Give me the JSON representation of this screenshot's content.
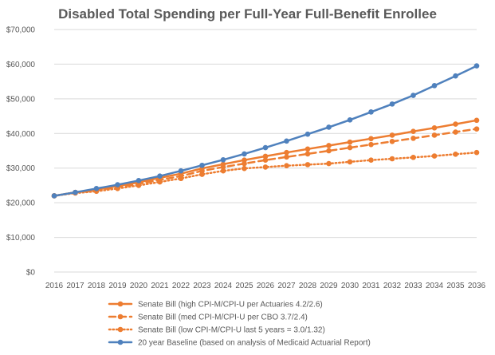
{
  "chart_data": {
    "type": "line",
    "title": "Disabled Total Spending per Full-Year Full-Benefit Enrollee",
    "x": [
      "2016",
      "2017",
      "2018",
      "2019",
      "2020",
      "2021",
      "2022",
      "2023",
      "2024",
      "2025",
      "2026",
      "2027",
      "2028",
      "2029",
      "2030",
      "2031",
      "2032",
      "2033",
      "2034",
      "2035",
      "2036"
    ],
    "ylim": [
      0,
      70000
    ],
    "yticks": [
      0,
      10000,
      20000,
      30000,
      40000,
      50000,
      60000,
      70000
    ],
    "ytick_labels": [
      "$0",
      "$10,000",
      "$20,000",
      "$30,000",
      "$40,000",
      "$50,000",
      "$60,000",
      "$70,000"
    ],
    "grid": true,
    "legend_position": "bottom",
    "series": [
      {
        "name": "Senate Bill (high CPI-M/CPI-U per Actuaries 4.2/2.6)",
        "color": "#ed7d31",
        "style": "solid",
        "values": [
          22000,
          23000,
          23800,
          24800,
          25900,
          27200,
          28400,
          29900,
          31100,
          32300,
          33400,
          34500,
          35500,
          36500,
          37500,
          38500,
          39500,
          40600,
          41600,
          42700,
          43800
        ]
      },
      {
        "name": "Senate Bill (med CPI-M/CPI-U per CBO 3.7/2.4)",
        "color": "#ed7d31",
        "style": "dashed",
        "values": [
          22000,
          23000,
          23600,
          24500,
          25500,
          26600,
          27700,
          29200,
          30300,
          31300,
          32300,
          33200,
          34100,
          35000,
          35900,
          36800,
          37700,
          38600,
          39500,
          40400,
          41300
        ]
      },
      {
        "name": "Senate Bill (low CPI-M/CPI-U last 5 years = 3.0/1.32)",
        "color": "#ed7d31",
        "style": "dotted",
        "values": [
          22000,
          22800,
          23300,
          24100,
          25000,
          26000,
          27000,
          28200,
          29200,
          29900,
          30300,
          30700,
          31000,
          31300,
          31800,
          32300,
          32700,
          33100,
          33500,
          34000,
          34500
        ]
      },
      {
        "name": "20 year Baseline (based on analysis of Medicaid Actuarial Report)",
        "color": "#4f81bd",
        "style": "solid",
        "values": [
          22000,
          23000,
          24100,
          25200,
          26400,
          27700,
          29200,
          30800,
          32400,
          34100,
          35900,
          37800,
          39800,
          41800,
          43900,
          46200,
          48500,
          51000,
          53800,
          56600,
          59500
        ]
      }
    ]
  }
}
